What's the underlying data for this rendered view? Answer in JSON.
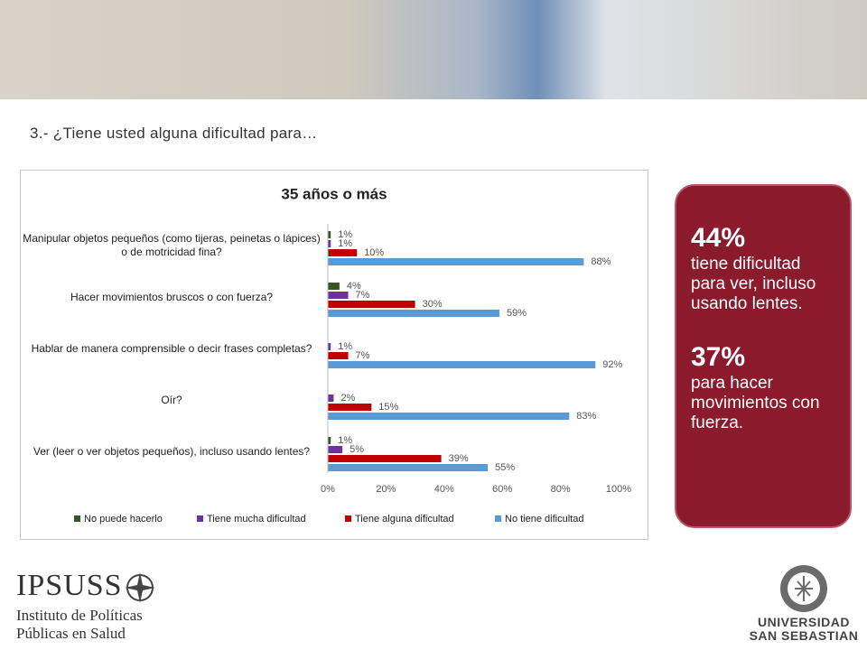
{
  "header": {
    "question": "3.- ¿Tiene usted alguna dificultad para…"
  },
  "callout": [
    {
      "figure": "44%",
      "text": "tiene dificultad para ver, incluso usando lentes."
    },
    {
      "figure": "37%",
      "text": "para hacer movimientos con fuerza."
    }
  ],
  "logos": {
    "ipsuss": {
      "name": "IPSUSS",
      "line1": "Instituto de Políticas",
      "line2": "Públicas en Salud"
    },
    "uss": {
      "line1": "UNIVERSIDAD",
      "line2": "SAN SEBASTIAN"
    }
  },
  "chart_data": {
    "type": "hbar",
    "title": "35 años o más",
    "categories": [
      "Manipular objetos pequeños (como tijeras, peinetas o lápices) o de motricidad fina?",
      "Hacer movimientos bruscos o con fuerza?",
      "Hablar de manera comprensible o decir frases completas?",
      "Oír?",
      "Ver (leer o ver objetos pequeños), incluso usando lentes?"
    ],
    "series": [
      {
        "name": "No puede hacerlo",
        "color": "#375623",
        "values": [
          1,
          4,
          null,
          null,
          1
        ],
        "value_labels": [
          "1%",
          "4%",
          null,
          null,
          "1%"
        ]
      },
      {
        "name": "Tiene mucha dificultad",
        "color": "#7030a0",
        "values": [
          1,
          7,
          1,
          2,
          5
        ],
        "value_labels": [
          "1%",
          "7%",
          "1%",
          "2%",
          "5%"
        ]
      },
      {
        "name": "Tiene alguna dificultad",
        "color": "#c00000",
        "values": [
          10,
          30,
          7,
          15,
          39
        ],
        "value_labels": [
          "10%",
          "30%",
          "7%",
          "15%",
          "39%"
        ]
      },
      {
        "name": "No tiene dificultad",
        "color": "#5b9bd5",
        "values": [
          88,
          59,
          92,
          83,
          55
        ],
        "value_labels": [
          "88%",
          "59%",
          "92%",
          "83%",
          "55%"
        ]
      }
    ],
    "xlim": [
      0,
      100
    ],
    "xticks": [
      {
        "value": 0,
        "label": "0%"
      },
      {
        "value": 20,
        "label": "20%"
      },
      {
        "value": 40,
        "label": "40%"
      },
      {
        "value": 60,
        "label": "60%"
      },
      {
        "value": 80,
        "label": "80%"
      },
      {
        "value": 100,
        "label": "100%"
      }
    ],
    "legend": "bottom",
    "grid": false
  }
}
